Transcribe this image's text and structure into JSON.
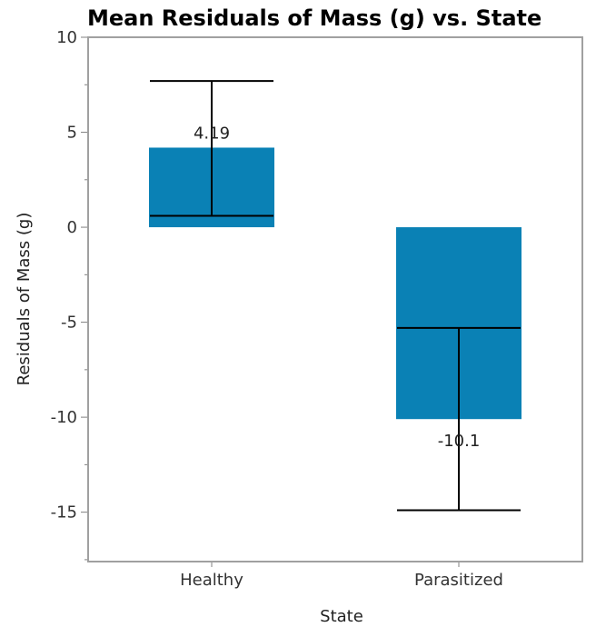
{
  "chart_data": {
    "type": "bar",
    "title": "Mean Residuals of Mass (g) vs. State",
    "xlabel": "State",
    "ylabel": "Residuals of Mass (g)",
    "categories": [
      "Healthy",
      "Parasitized"
    ],
    "values": [
      4.19,
      -10.1
    ],
    "value_labels": [
      "4.19",
      "-10.1"
    ],
    "error_bars": [
      {
        "low": 0.6,
        "high": 7.7
      },
      {
        "low": -14.9,
        "high": -5.3
      }
    ],
    "ylim": [
      -17.6,
      10
    ],
    "yticks": [
      10,
      5,
      0,
      -5,
      -10,
      -15
    ],
    "ytick_labels": [
      "10",
      "5",
      "0",
      "-5",
      "-10",
      "-15"
    ],
    "grid": false,
    "colors": {
      "bar": "#0A81B5",
      "error_bar": "#000000",
      "frame": "#A0A0A0",
      "tick": "#808080"
    }
  }
}
